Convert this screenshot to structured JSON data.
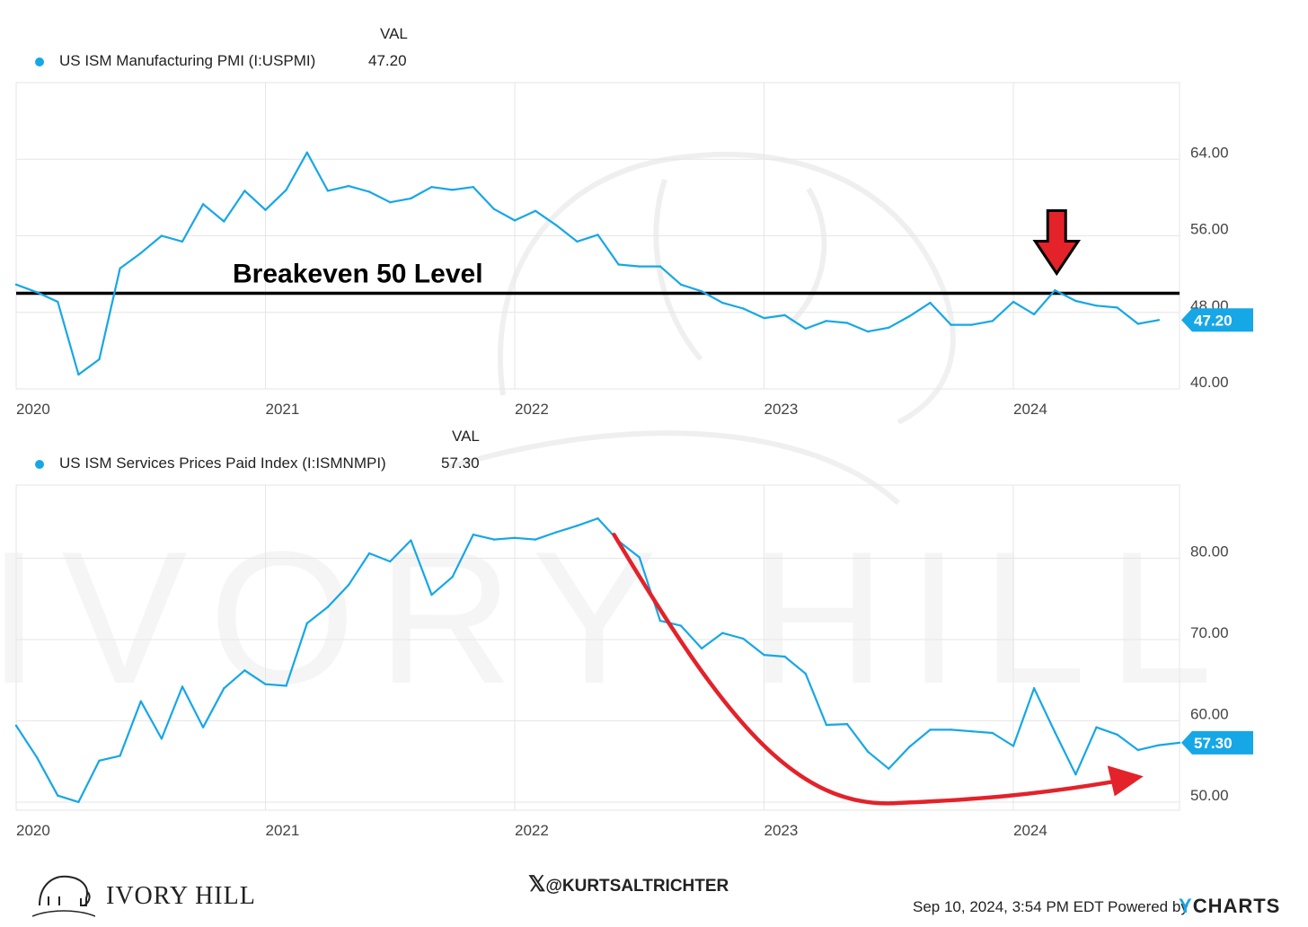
{
  "colors": {
    "series": "#16a7e6",
    "breakeven": "#000000",
    "annotation": "#e3222a",
    "grid": "#e6e6e6"
  },
  "chart_data": [
    {
      "type": "line",
      "legend": {
        "header": "VAL",
        "name": "US ISM Manufacturing PMI (I:USPMI)",
        "value": "47.20"
      },
      "series": [
        {
          "name": "US ISM Manufacturing PMI (I:USPMI)",
          "points": [
            [
              "2020-01",
              50.9
            ],
            [
              "2020-02",
              50.1
            ],
            [
              "2020-03",
              49.1
            ],
            [
              "2020-04",
              41.5
            ],
            [
              "2020-05",
              43.1
            ],
            [
              "2020-06",
              52.6
            ],
            [
              "2020-07",
              54.2
            ],
            [
              "2020-08",
              56.0
            ],
            [
              "2020-09",
              55.4
            ],
            [
              "2020-10",
              59.3
            ],
            [
              "2020-11",
              57.5
            ],
            [
              "2020-12",
              60.7
            ],
            [
              "2021-01",
              58.7
            ],
            [
              "2021-02",
              60.8
            ],
            [
              "2021-03",
              64.7
            ],
            [
              "2021-04",
              60.7
            ],
            [
              "2021-05",
              61.2
            ],
            [
              "2021-06",
              60.6
            ],
            [
              "2021-07",
              59.5
            ],
            [
              "2021-08",
              59.9
            ],
            [
              "2021-09",
              61.1
            ],
            [
              "2021-10",
              60.8
            ],
            [
              "2021-11",
              61.1
            ],
            [
              "2021-12",
              58.8
            ],
            [
              "2022-01",
              57.6
            ],
            [
              "2022-02",
              58.6
            ],
            [
              "2022-03",
              57.1
            ],
            [
              "2022-04",
              55.4
            ],
            [
              "2022-05",
              56.1
            ],
            [
              "2022-06",
              53.0
            ],
            [
              "2022-07",
              52.8
            ],
            [
              "2022-08",
              52.8
            ],
            [
              "2022-09",
              50.9
            ],
            [
              "2022-10",
              50.2
            ],
            [
              "2022-11",
              49.0
            ],
            [
              "2022-12",
              48.4
            ],
            [
              "2023-01",
              47.4
            ],
            [
              "2023-02",
              47.7
            ],
            [
              "2023-03",
              46.3
            ],
            [
              "2023-04",
              47.1
            ],
            [
              "2023-05",
              46.9
            ],
            [
              "2023-06",
              46.0
            ],
            [
              "2023-07",
              46.4
            ],
            [
              "2023-08",
              47.6
            ],
            [
              "2023-09",
              49.0
            ],
            [
              "2023-10",
              46.7
            ],
            [
              "2023-11",
              46.7
            ],
            [
              "2023-12",
              47.1
            ],
            [
              "2024-01",
              49.1
            ],
            [
              "2024-02",
              47.8
            ],
            [
              "2024-03",
              50.3
            ],
            [
              "2024-04",
              49.2
            ],
            [
              "2024-05",
              48.7
            ],
            [
              "2024-06",
              48.5
            ],
            [
              "2024-07",
              46.8
            ],
            [
              "2024-08",
              47.2
            ]
          ]
        }
      ],
      "last_value_label": "47.20",
      "ylim": [
        40,
        72
      ],
      "y_ticks": [
        {
          "v": 40,
          "label": "40.00"
        },
        {
          "v": 48,
          "label": "48.00"
        },
        {
          "v": 56,
          "label": "56.00"
        },
        {
          "v": 64,
          "label": "64.00"
        }
      ],
      "x_ticks": [
        "2020",
        "2021",
        "2022",
        "2023",
        "2024"
      ],
      "xlim": [
        "2020-01",
        "2024-09"
      ],
      "reference_line": {
        "value": 50,
        "label": "Breakeven 50 Level"
      },
      "annotation_arrow": {
        "direction": "down",
        "at": "2024-03"
      },
      "grid": true
    },
    {
      "type": "line",
      "legend": {
        "header": "VAL",
        "name": "US ISM Services Prices Paid Index (I:ISMNMPI)",
        "value": "57.30"
      },
      "series": [
        {
          "name": "US ISM Services Prices Paid Index (I:ISMNMPI)",
          "points": [
            [
              "2020-01",
              59.4
            ],
            [
              "2020-02",
              55.5
            ],
            [
              "2020-03",
              50.8
            ],
            [
              "2020-04",
              50.0
            ],
            [
              "2020-05",
              55.1
            ],
            [
              "2020-06",
              55.7
            ],
            [
              "2020-07",
              62.4
            ],
            [
              "2020-08",
              57.8
            ],
            [
              "2020-09",
              64.2
            ],
            [
              "2020-10",
              59.2
            ],
            [
              "2020-11",
              64.0
            ],
            [
              "2020-12",
              66.2
            ],
            [
              "2021-01",
              64.5
            ],
            [
              "2021-02",
              64.3
            ],
            [
              "2021-03",
              72.0
            ],
            [
              "2021-04",
              74.0
            ],
            [
              "2021-05",
              76.7
            ],
            [
              "2021-06",
              80.6
            ],
            [
              "2021-07",
              79.6
            ],
            [
              "2021-08",
              82.2
            ],
            [
              "2021-09",
              75.5
            ],
            [
              "2021-10",
              77.7
            ],
            [
              "2021-11",
              82.9
            ],
            [
              "2021-12",
              82.3
            ],
            [
              "2022-01",
              82.5
            ],
            [
              "2022-02",
              82.3
            ],
            [
              "2022-03",
              83.2
            ],
            [
              "2022-04",
              84.0
            ],
            [
              "2022-05",
              84.9
            ],
            [
              "2022-06",
              82.1
            ],
            [
              "2022-07",
              80.1
            ],
            [
              "2022-08",
              72.3
            ],
            [
              "2022-09",
              71.7
            ],
            [
              "2022-10",
              68.9
            ],
            [
              "2022-11",
              70.8
            ],
            [
              "2022-12",
              70.1
            ],
            [
              "2023-01",
              68.1
            ],
            [
              "2023-02",
              67.9
            ],
            [
              "2023-03",
              65.8
            ],
            [
              "2023-04",
              59.5
            ],
            [
              "2023-05",
              59.6
            ],
            [
              "2023-06",
              56.2
            ],
            [
              "2023-07",
              54.1
            ],
            [
              "2023-08",
              56.8
            ],
            [
              "2023-09",
              58.9
            ],
            [
              "2023-10",
              58.9
            ],
            [
              "2023-11",
              58.7
            ],
            [
              "2023-12",
              58.5
            ],
            [
              "2024-01",
              56.9
            ],
            [
              "2024-02",
              64.0
            ],
            [
              "2024-03",
              58.6
            ],
            [
              "2024-04",
              53.4
            ],
            [
              "2024-05",
              59.2
            ],
            [
              "2024-06",
              58.3
            ],
            [
              "2024-07",
              56.4
            ],
            [
              "2024-08",
              57.0
            ],
            [
              "2024-09",
              57.3
            ]
          ]
        }
      ],
      "last_value_label": "57.30",
      "ylim": [
        49,
        89
      ],
      "y_ticks": [
        {
          "v": 50,
          "label": "50.00"
        },
        {
          "v": 60,
          "label": "60.00"
        },
        {
          "v": 70,
          "label": "70.00"
        },
        {
          "v": 80,
          "label": "80.00"
        }
      ],
      "x_ticks": [
        "2020",
        "2021",
        "2022",
        "2023",
        "2024"
      ],
      "xlim": [
        "2020-01",
        "2024-09"
      ],
      "annotation_arrow": {
        "direction": "curved",
        "from": "2022-05",
        "to": "2024-07"
      },
      "grid": true
    }
  ],
  "watermark": "IVORY HILL",
  "footer": {
    "brand": "IVORY HILL",
    "handle": "@KURTSALTRICHTER",
    "timestamp": "Sep 10, 2024, 3:54 PM EDT Powered by",
    "powered_by_mark": "Y",
    "powered_by_rest": "CHARTS"
  }
}
